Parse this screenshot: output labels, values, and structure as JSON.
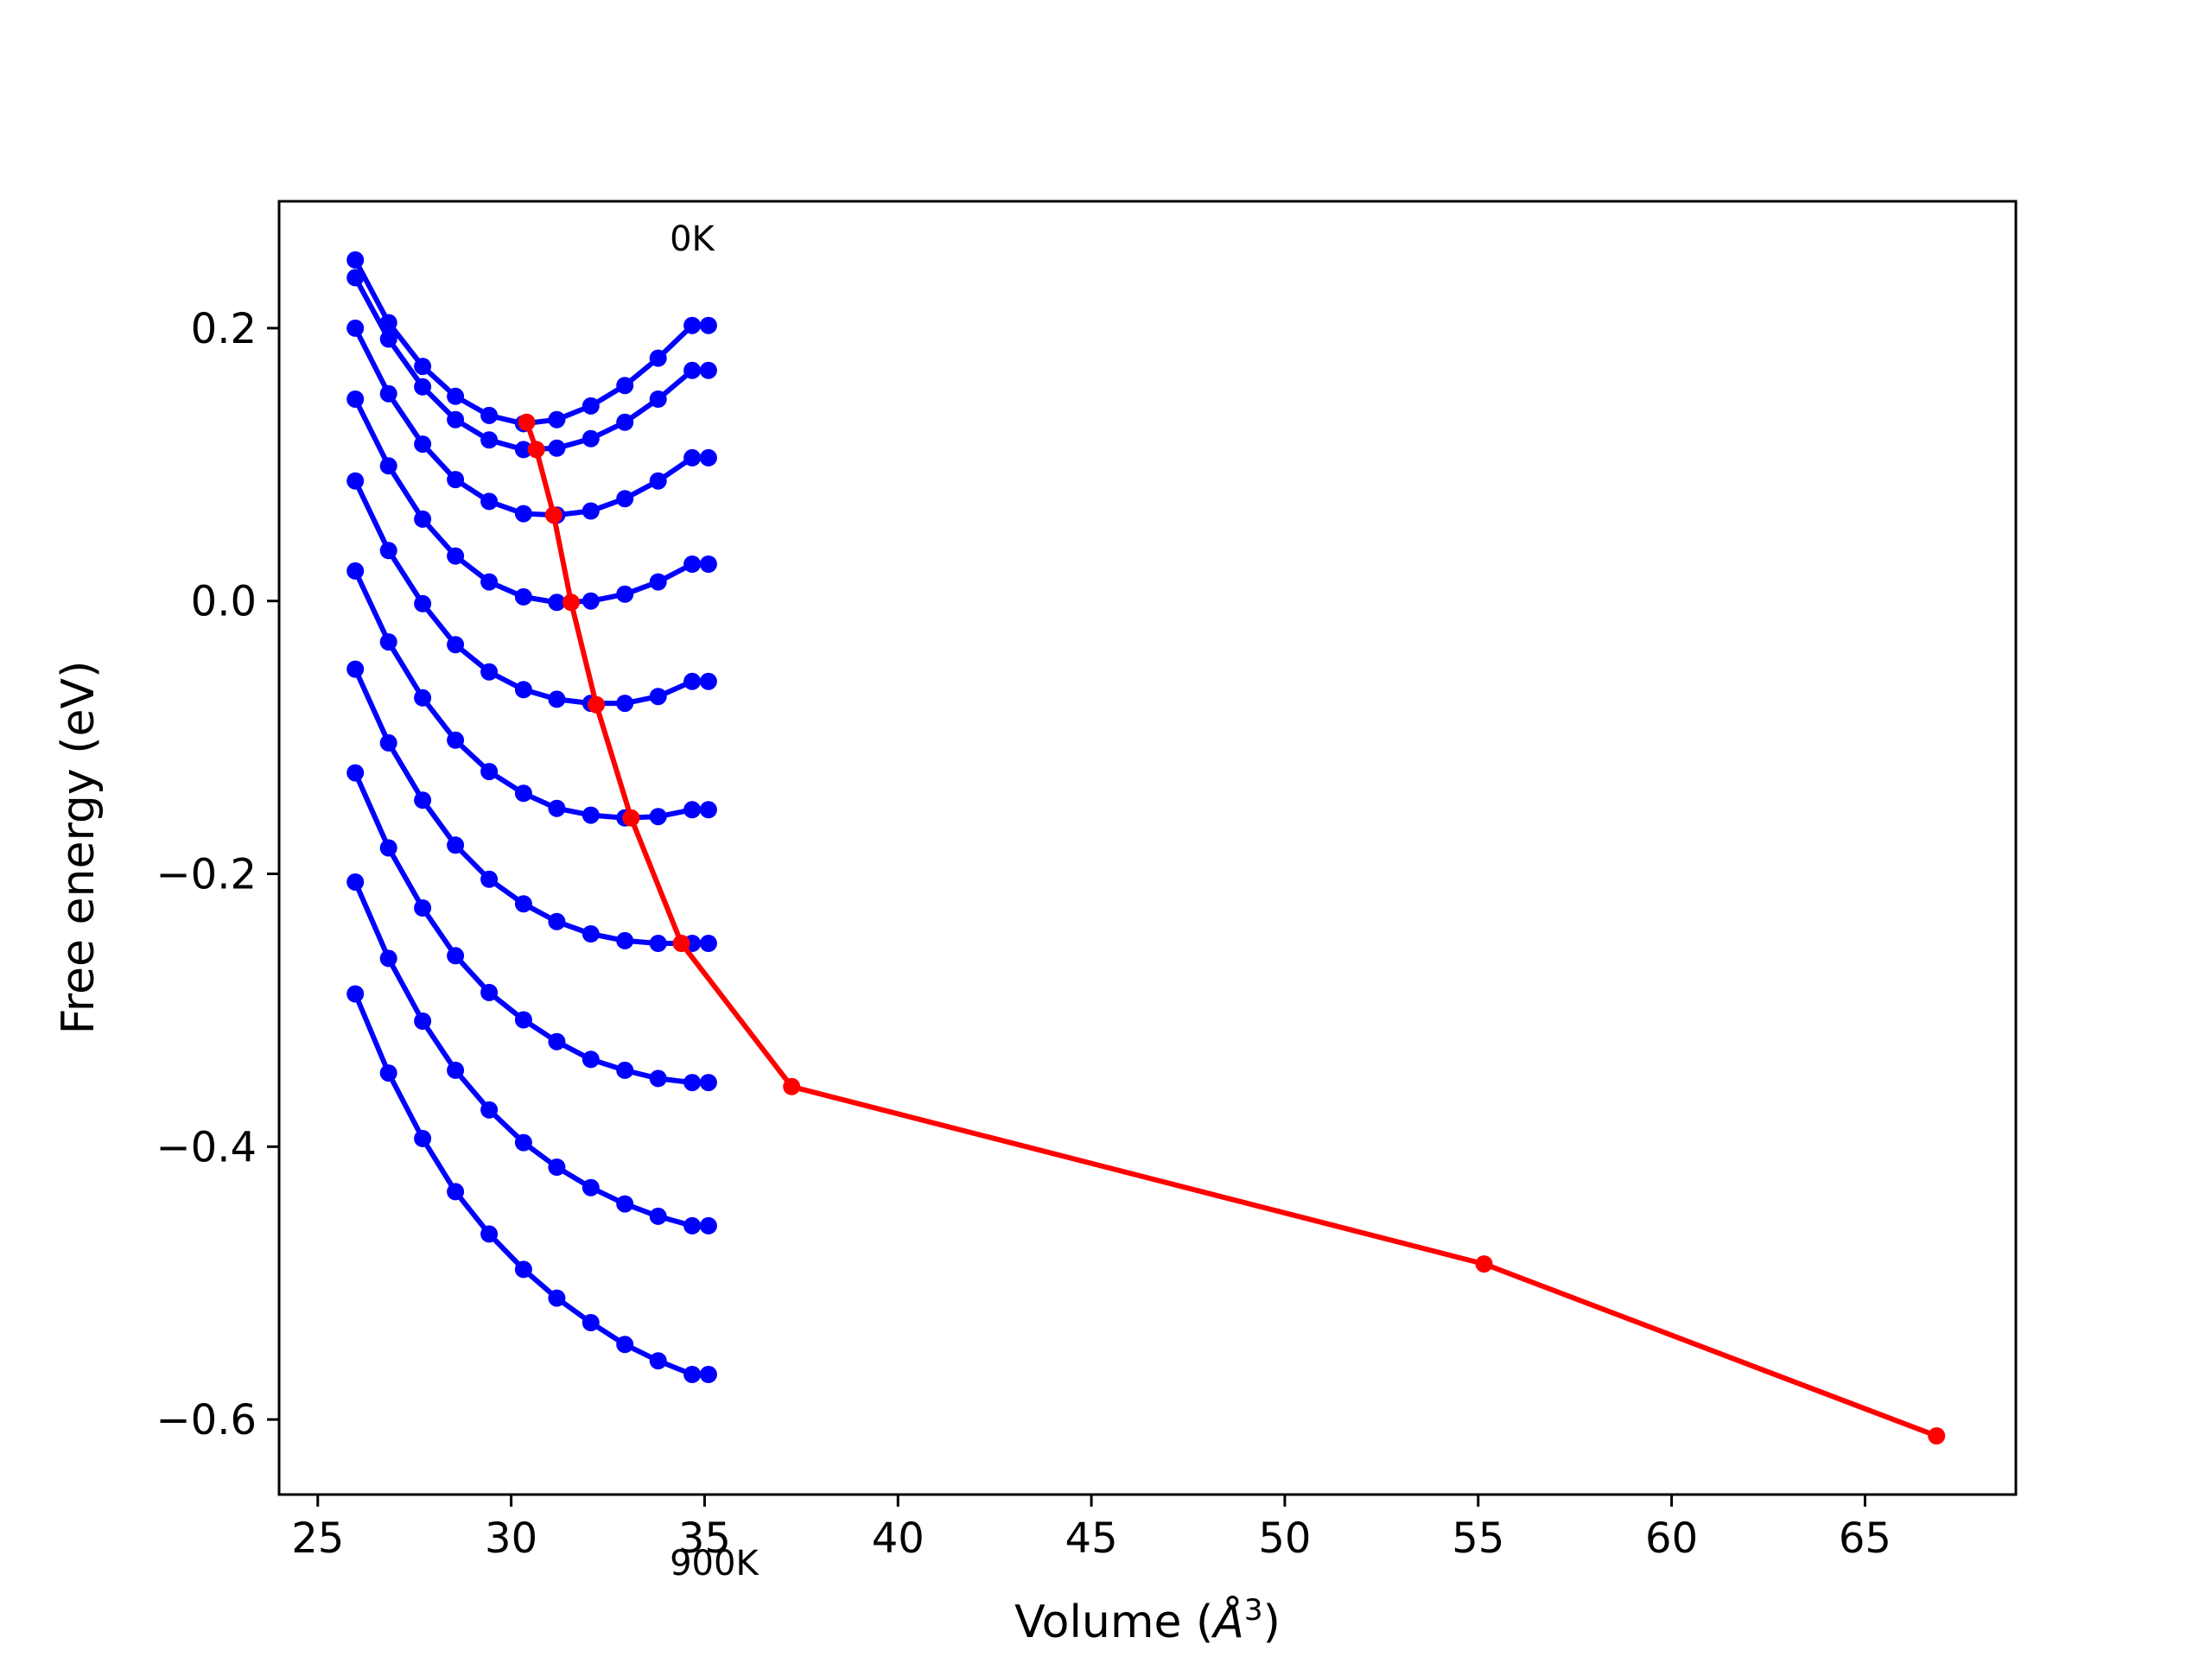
{
  "chart_data": {
    "type": "line",
    "title": "",
    "xlabel": "Volume (",
    "xlabel_unit": "Å",
    "xlabel_exp": "3",
    "xlabel_close": ")",
    "ylabel": "Free energy (eV)",
    "xlim": [
      24.0,
      68.9
    ],
    "ylim": [
      -0.655,
      0.293
    ],
    "xticks": [
      25,
      30,
      35,
      40,
      45,
      50,
      55,
      60,
      65
    ],
    "yticks": [
      -0.6,
      -0.4,
      -0.2,
      0.0,
      0.2
    ],
    "grid": false,
    "legend": "none",
    "annotations": [
      {
        "text": "0K",
        "x": 34.1,
        "y": 0.257
      },
      {
        "text": "900K",
        "x": 34.1,
        "y": -0.714
      }
    ],
    "colors": {
      "isotherms": "#0000ff",
      "equilibrium": "#ff0000"
    },
    "isotherm_x": [
      25.97,
      26.83,
      27.71,
      28.56,
      29.43,
      30.32,
      31.18,
      32.06,
      32.94,
      33.8,
      34.68,
      35.1
    ],
    "series": [
      {
        "values": [
          0.25,
          0.204,
          0.172,
          0.15,
          0.136,
          0.13,
          0.133,
          0.143,
          0.158,
          0.178,
          0.202,
          0.202
        ]
      },
      {
        "values": [
          0.237,
          0.192,
          0.157,
          0.133,
          0.118,
          0.111,
          0.112,
          0.119,
          0.131,
          0.148,
          0.169,
          0.169
        ]
      },
      {
        "values": [
          0.2,
          0.152,
          0.115,
          0.089,
          0.073,
          0.064,
          0.063,
          0.066,
          0.075,
          0.088,
          0.105,
          0.105
        ]
      },
      {
        "values": [
          0.148,
          0.099,
          0.06,
          0.033,
          0.014,
          0.003,
          -0.001,
          0.0,
          0.005,
          0.014,
          0.027,
          0.027
        ]
      },
      {
        "values": [
          0.088,
          0.037,
          -0.002,
          -0.032,
          -0.052,
          -0.065,
          -0.072,
          -0.075,
          -0.075,
          -0.07,
          -0.059,
          -0.059
        ]
      },
      {
        "values": [
          0.022,
          -0.03,
          -0.071,
          -0.102,
          -0.125,
          -0.141,
          -0.152,
          -0.157,
          -0.159,
          -0.158,
          -0.153,
          -0.153
        ]
      },
      {
        "values": [
          -0.05,
          -0.104,
          -0.146,
          -0.179,
          -0.204,
          -0.222,
          -0.235,
          -0.244,
          -0.249,
          -0.251,
          -0.251,
          -0.251
        ]
      },
      {
        "values": [
          -0.126,
          -0.181,
          -0.225,
          -0.26,
          -0.287,
          -0.307,
          -0.323,
          -0.336,
          -0.344,
          -0.35,
          -0.353,
          -0.353
        ]
      },
      {
        "values": [
          -0.206,
          -0.262,
          -0.308,
          -0.344,
          -0.373,
          -0.397,
          -0.415,
          -0.43,
          -0.442,
          -0.451,
          -0.458,
          -0.458
        ]
      },
      {
        "values": [
          -0.288,
          -0.346,
          -0.394,
          -0.433,
          -0.464,
          -0.49,
          -0.511,
          -0.529,
          -0.545,
          -0.557,
          -0.567,
          -0.567
        ]
      }
    ],
    "equilibrium": {
      "x": [
        30.4,
        30.65,
        31.1,
        31.55,
        32.2,
        33.1,
        34.4,
        37.25,
        55.15,
        66.85
      ],
      "y": [
        0.131,
        0.111,
        0.063,
        -0.001,
        -0.076,
        -0.159,
        -0.251,
        -0.356,
        -0.486,
        -0.612
      ]
    }
  }
}
